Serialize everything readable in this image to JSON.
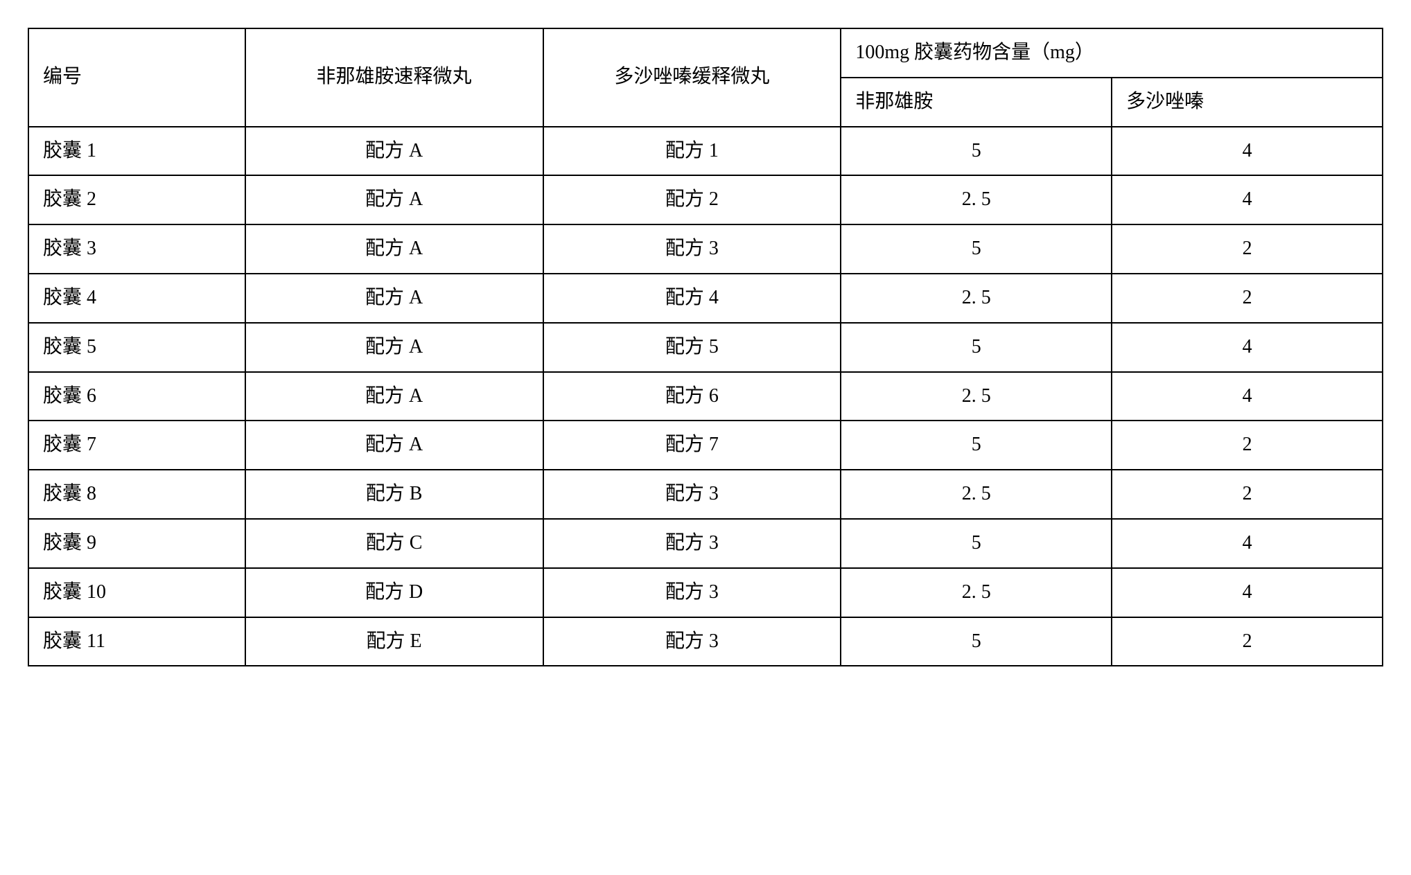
{
  "table": {
    "header": {
      "col1": "编号",
      "col2": "非那雄胺速释微丸",
      "col3": "多沙唑嗪缓释微丸",
      "col4_group": "100mg 胶囊药物含量（mg）",
      "col4_sub1": "非那雄胺",
      "col4_sub2": "多沙唑嗪"
    },
    "rows": [
      {
        "id": "胶囊 1",
        "formA": "配方 A",
        "formB": "配方 1",
        "dose1": "5",
        "dose2": "4"
      },
      {
        "id": "胶囊 2",
        "formA": "配方 A",
        "formB": "配方 2",
        "dose1": "2. 5",
        "dose2": "4"
      },
      {
        "id": "胶囊 3",
        "formA": "配方 A",
        "formB": "配方 3",
        "dose1": "5",
        "dose2": "2"
      },
      {
        "id": "胶囊 4",
        "formA": "配方 A",
        "formB": "配方 4",
        "dose1": "2. 5",
        "dose2": "2"
      },
      {
        "id": "胶囊 5",
        "formA": "配方 A",
        "formB": "配方 5",
        "dose1": "5",
        "dose2": "4"
      },
      {
        "id": "胶囊 6",
        "formA": "配方 A",
        "formB": "配方 6",
        "dose1": "2. 5",
        "dose2": "4"
      },
      {
        "id": "胶囊 7",
        "formA": "配方 A",
        "formB": "配方 7",
        "dose1": "5",
        "dose2": "2"
      },
      {
        "id": "胶囊 8",
        "formA": "配方 B",
        "formB": "配方 3",
        "dose1": "2. 5",
        "dose2": "2"
      },
      {
        "id": "胶囊 9",
        "formA": "配方 C",
        "formB": "配方 3",
        "dose1": "5",
        "dose2": "4"
      },
      {
        "id": "胶囊 10",
        "formA": "配方 D",
        "formB": "配方 3",
        "dose1": "2. 5",
        "dose2": "4"
      },
      {
        "id": "胶囊 11",
        "formA": "配方 E",
        "formB": "配方 3",
        "dose1": "5",
        "dose2": "2"
      }
    ]
  }
}
